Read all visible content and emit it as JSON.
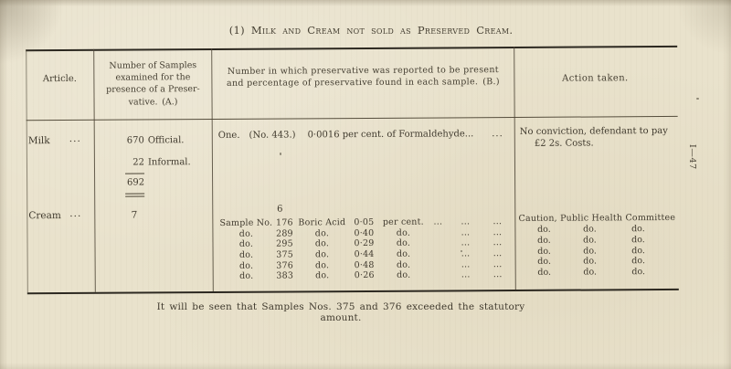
{
  "page": {
    "title": "(1) Milk and Cream not sold as Preserved Cream.",
    "side_mark": "I—47",
    "footnote": "It will be seen that Samples Nos. 375 and 376 exceeded the statutory amount."
  },
  "header": {
    "article": "Article.",
    "samples_lines": [
      "Number of Samples",
      "examined for the",
      "presence of a Preser-",
      "vative. (A.)"
    ],
    "preservative_lines": [
      "Number in which preservative was reported to be present",
      "and percentage of preservative found in each sample. (B.)"
    ],
    "action": "Action taken."
  },
  "milk": {
    "article": "Milk",
    "dots": "...",
    "official_num": "670",
    "official_label": "Official.",
    "informal_num": "22",
    "informal_label": "Informal.",
    "total": "692",
    "result_one": "One.",
    "result_no": "(No. 443.)",
    "result_text": "0·0016 per cent. of Formaldehyde...",
    "result_dots": "...",
    "action_line1": "No conviction, defendant to pay",
    "action_line2": "£2 2s. Costs."
  },
  "cream": {
    "article": "Cream",
    "dots": "...",
    "count": "7",
    "found": "6",
    "rows": [
      [
        "Sample No.",
        "176",
        "Boric Acid",
        "0·05",
        "per cent.",
        "...",
        "...",
        "..."
      ],
      [
        "do.",
        "289",
        "do.",
        "0·40",
        "do.",
        "",
        "...",
        "..."
      ],
      [
        "do.",
        "295",
        "do.",
        "0·29",
        "do.",
        "",
        "...",
        "..."
      ],
      [
        "do.",
        "375",
        "do.",
        "0·44",
        "do.",
        "",
        "...",
        "..."
      ],
      [
        "do.",
        "376",
        "do.",
        "0·48",
        "do.",
        "",
        "...",
        "..."
      ],
      [
        "do.",
        "383",
        "do.",
        "0·26",
        "do.",
        "",
        "...",
        "..."
      ]
    ],
    "action_header": "Caution, Public Health Committee",
    "action_rows": [
      [
        "do.",
        "do.",
        "do."
      ],
      [
        "do.",
        "do.",
        "do."
      ],
      [
        "do.",
        "do.",
        "do."
      ],
      [
        "do.",
        "do.",
        "do."
      ],
      [
        "do.",
        "do.",
        "do."
      ]
    ]
  }
}
